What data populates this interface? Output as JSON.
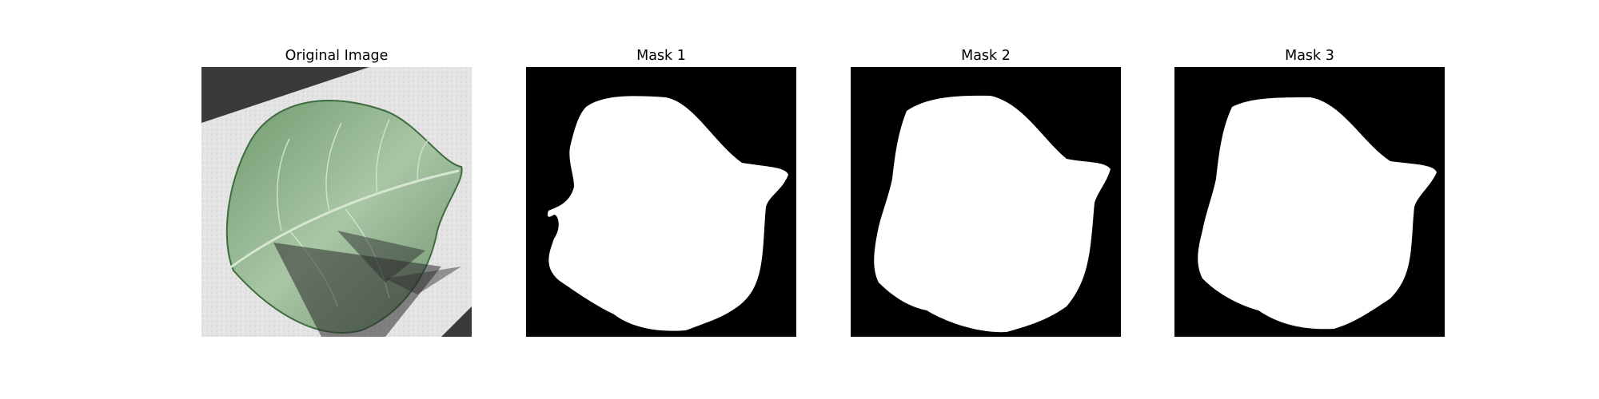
{
  "panels": [
    {
      "title": "Original Image",
      "kind": "photo"
    },
    {
      "title": "Mask 1",
      "kind": "mask"
    },
    {
      "title": "Mask 2",
      "kind": "mask"
    },
    {
      "title": "Mask 3",
      "kind": "mask"
    }
  ],
  "colors": {
    "background": "#ffffff",
    "mask_background": "#000000",
    "mask_foreground": "#ffffff",
    "leaf": "#8db38b",
    "leaf_dark": "#4e7550",
    "paper": "#e6e6e6",
    "shadow": "#2b2b2b"
  }
}
